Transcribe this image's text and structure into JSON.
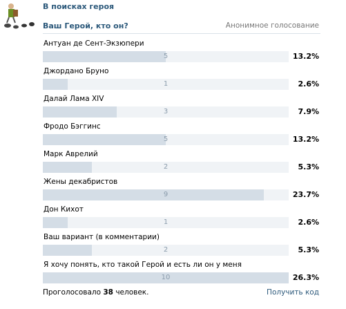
{
  "group": {
    "title": "В поисках героя"
  },
  "poll": {
    "question": "Ваш Герой, кто он?",
    "type": "Анонимное голосование",
    "options": [
      {
        "label": "Антуан де Сент-Экзюпери",
        "count": "5",
        "percent": "13.2%",
        "fraction": 0.5
      },
      {
        "label": "Джордано Бруно",
        "count": "1",
        "percent": "2.6%",
        "fraction": 0.1
      },
      {
        "label": "Далай Лама XIV",
        "count": "3",
        "percent": "7.9%",
        "fraction": 0.3
      },
      {
        "label": "Фродо Бэггинс",
        "count": "5",
        "percent": "13.2%",
        "fraction": 0.5
      },
      {
        "label": "Марк Аврелий",
        "count": "2",
        "percent": "5.3%",
        "fraction": 0.2
      },
      {
        "label": "Жены декабристов",
        "count": "9",
        "percent": "23.7%",
        "fraction": 0.9
      },
      {
        "label": "Дон Кихот",
        "count": "1",
        "percent": "2.6%",
        "fraction": 0.1
      },
      {
        "label": "Ваш вариант (в комментарии)",
        "count": "2",
        "percent": "5.3%",
        "fraction": 0.2
      },
      {
        "label": "Я хочу понять, кто такой Герой и есть ли он у меня",
        "count": "10",
        "percent": "26.3%",
        "fraction": 1.0
      }
    ],
    "footer": {
      "voted_prefix": "Проголосовало",
      "voted_count": "38",
      "voted_suffix": "человек.",
      "get_code": "Получить код"
    }
  },
  "colors": {
    "link": "#2b587a",
    "bar_bg": "#f0f3f6",
    "bar_fill": "#d4dde6"
  },
  "icons": {
    "avatar": "hiker-with-footprints-icon"
  }
}
